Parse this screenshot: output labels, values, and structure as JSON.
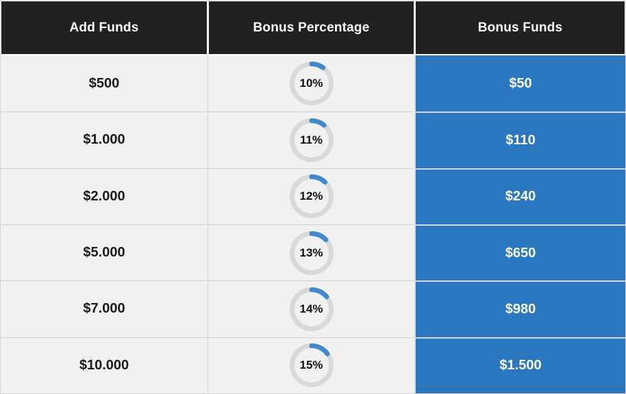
{
  "table": {
    "columns": [
      {
        "label": "Add Funds"
      },
      {
        "label": "Bonus Percentage"
      },
      {
        "label": "Bonus Funds"
      }
    ],
    "rows": [
      {
        "add_funds": "$500",
        "bonus_percent": 10,
        "bonus_percent_label": "10%",
        "bonus_funds": "$50"
      },
      {
        "add_funds": "$1.000",
        "bonus_percent": 11,
        "bonus_percent_label": "11%",
        "bonus_funds": "$110"
      },
      {
        "add_funds": "$2.000",
        "bonus_percent": 12,
        "bonus_percent_label": "12%",
        "bonus_funds": "$240"
      },
      {
        "add_funds": "$5.000",
        "bonus_percent": 13,
        "bonus_percent_label": "13%",
        "bonus_funds": "$650"
      },
      {
        "add_funds": "$7.000",
        "bonus_percent": 14,
        "bonus_percent_label": "14%",
        "bonus_funds": "$980"
      },
      {
        "add_funds": "$10.000",
        "bonus_percent": 15,
        "bonus_percent_label": "15%",
        "bonus_funds": "$1.500"
      }
    ]
  },
  "chart_data": {
    "type": "table",
    "columns": [
      "Add Funds",
      "Bonus Percentage",
      "Bonus Funds"
    ],
    "rows": [
      [
        "$500",
        "10%",
        "$50"
      ],
      [
        "$1.000",
        "11%",
        "$110"
      ],
      [
        "$2.000",
        "12%",
        "$240"
      ],
      [
        "$5.000",
        "13%",
        "$650"
      ],
      [
        "$7.000",
        "14%",
        "$980"
      ],
      [
        "$10.000",
        "15%",
        "$1.500"
      ]
    ],
    "gauge_values_percent": [
      10,
      11,
      12,
      13,
      14,
      15
    ],
    "gauge_range": [
      0,
      100
    ]
  },
  "colors": {
    "header_bg": "#232021",
    "header_text": "#ffffff",
    "row_bg": "#f1f1f1",
    "bonus_cell_bg": "#2b77bf",
    "bonus_cell_text": "#ffffff",
    "gauge_ring": "#d9d9d9",
    "gauge_arc": "#4189ca",
    "grid_border": "#d2d2d2"
  }
}
